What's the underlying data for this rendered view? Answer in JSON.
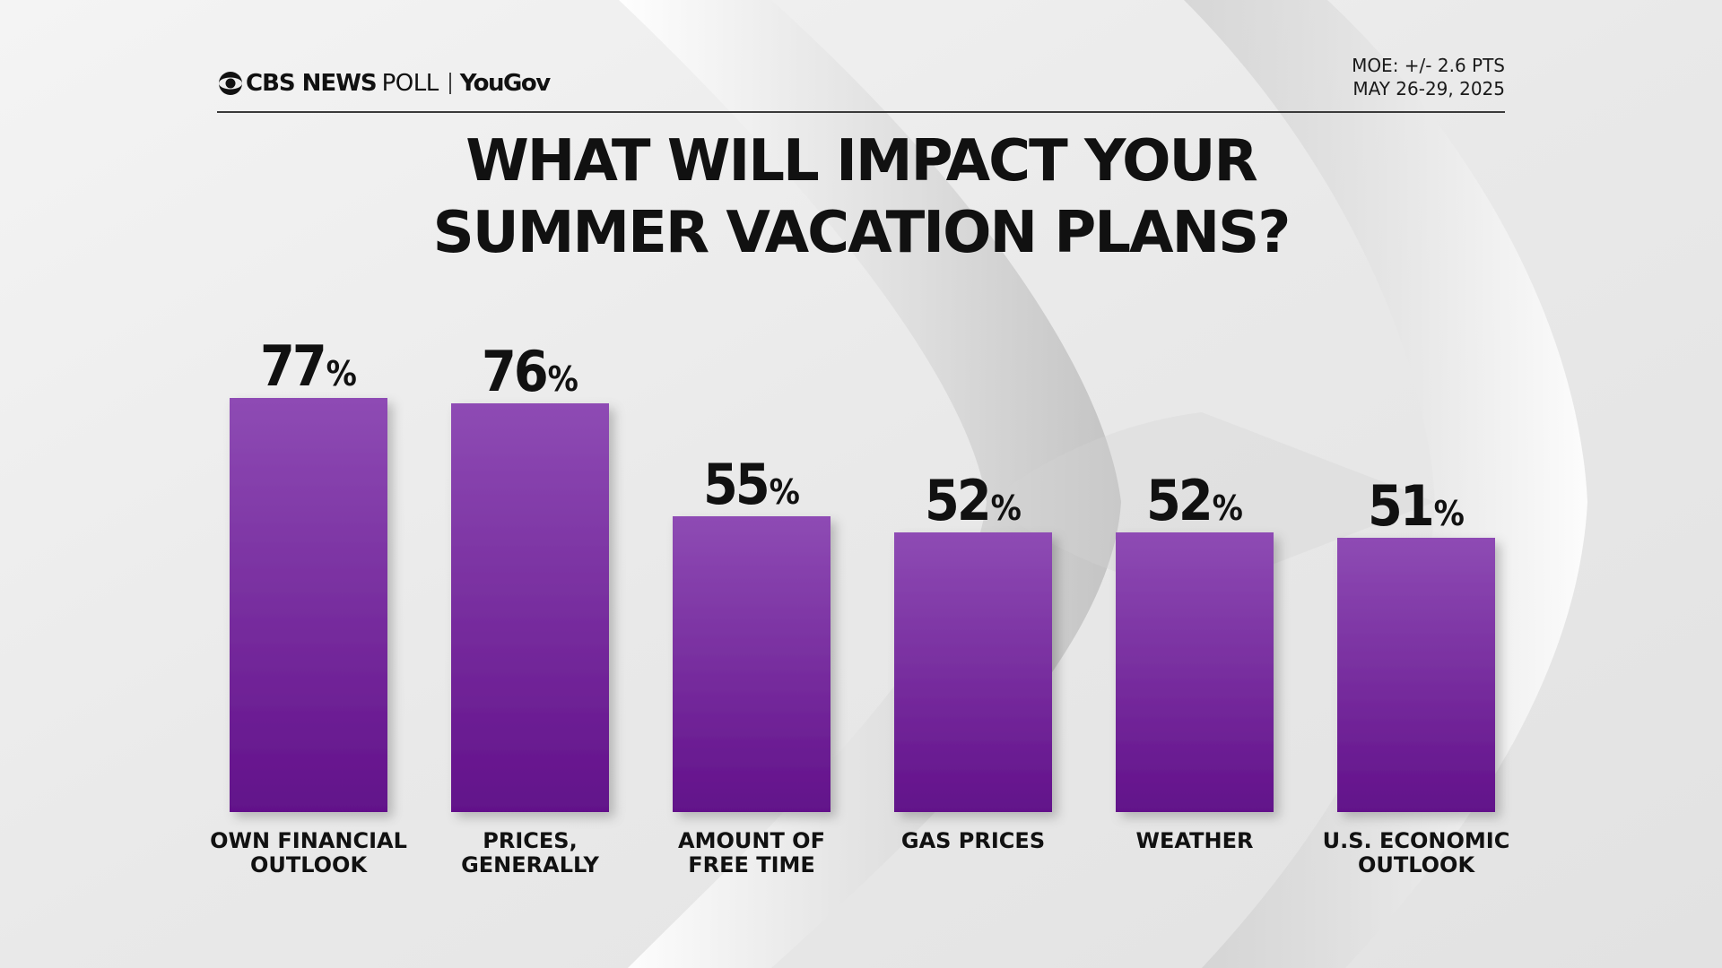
{
  "header": {
    "brand_cbs": "CBS NEWS",
    "brand_poll": "POLL",
    "brand_partner": "YouGov",
    "moe": "MOE: +/- 2.6 PTS",
    "date": "MAY 26-29, 2025"
  },
  "title_line1": "WHAT WILL IMPACT YOUR",
  "title_line2": "SUMMER VACATION PLANS?",
  "colors": {
    "bar_top": "#8e4bb4",
    "bar_bottom": "#62118a",
    "text": "#111111"
  },
  "chart_data": {
    "type": "bar",
    "title": "WHAT WILL IMPACT YOUR SUMMER VACATION PLANS?",
    "categories": [
      [
        "OWN FINANCIAL",
        "OUTLOOK"
      ],
      [
        "PRICES,",
        "GENERALLY"
      ],
      [
        "AMOUNT OF",
        "FREE TIME"
      ],
      [
        "GAS PRICES"
      ],
      [
        "WEATHER"
      ],
      [
        "U.S. ECONOMIC",
        "OUTLOOK"
      ]
    ],
    "values": [
      77,
      76,
      55,
      52,
      52,
      51
    ],
    "value_suffix": "%",
    "xlabel": "",
    "ylabel": "",
    "ylim": [
      0,
      100
    ],
    "grid": false
  }
}
